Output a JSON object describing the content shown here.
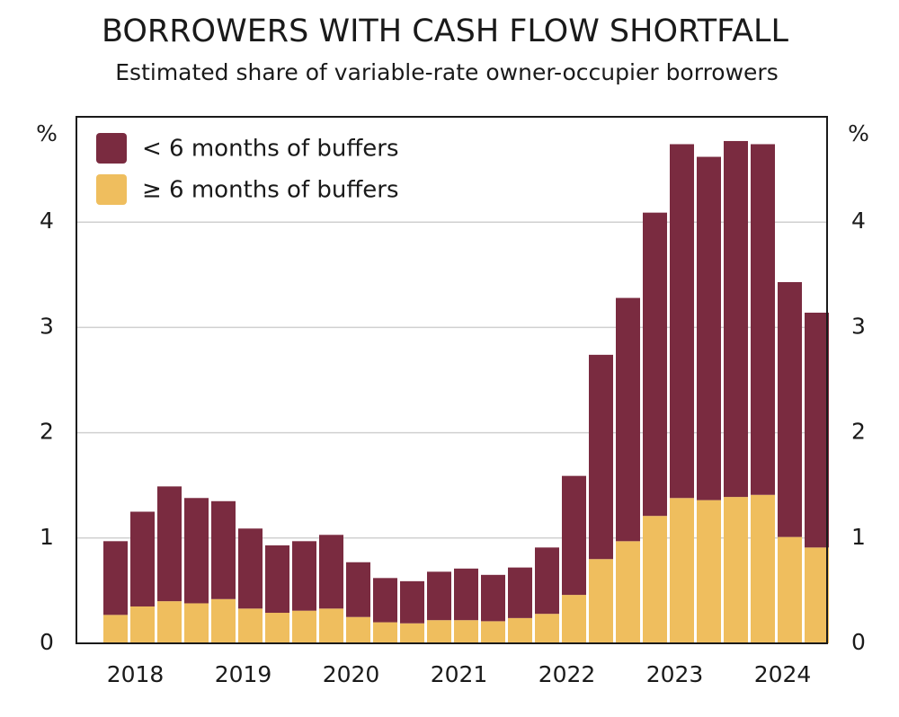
{
  "chart_data": {
    "type": "stacked_bar",
    "title": "BORROWERS WITH CASH FLOW SHORTFALL",
    "subtitle": "Estimated share of variable-rate owner-occupier borrowers",
    "ylabel": "%",
    "y2label": "%",
    "categories": [
      null,
      "2018",
      null,
      null,
      null,
      "2019",
      null,
      null,
      null,
      "2020",
      null,
      null,
      null,
      "2021",
      null,
      null,
      null,
      "2022",
      null,
      null,
      null,
      "2023",
      null,
      null,
      null,
      "2024",
      null
    ],
    "series": [
      {
        "name": "≥ 6 months of buffers",
        "color": "#efbe5e",
        "values": [
          0.27,
          0.35,
          0.4,
          0.38,
          0.42,
          0.33,
          0.29,
          0.31,
          0.33,
          0.25,
          0.2,
          0.19,
          0.22,
          0.22,
          0.21,
          0.24,
          0.28,
          0.46,
          0.8,
          0.97,
          1.21,
          1.38,
          1.36,
          1.39,
          1.41,
          1.01,
          0.91
        ]
      },
      {
        "name": "< 6 months of buffers",
        "color": "#7a2b40",
        "values": [
          0.7,
          0.9,
          1.09,
          1.0,
          0.93,
          0.76,
          0.64,
          0.66,
          0.7,
          0.52,
          0.42,
          0.4,
          0.46,
          0.49,
          0.44,
          0.48,
          0.63,
          1.13,
          1.94,
          2.31,
          2.88,
          3.36,
          3.26,
          3.38,
          3.33,
          2.42,
          2.23
        ]
      }
    ],
    "ylim": [
      0,
      5
    ],
    "yticks": [
      0,
      1,
      2,
      3,
      4
    ],
    "y2lim": [
      0,
      5
    ],
    "y2ticks": [
      0,
      1,
      2,
      3,
      4
    ],
    "grid": true,
    "legend": "top-left"
  }
}
